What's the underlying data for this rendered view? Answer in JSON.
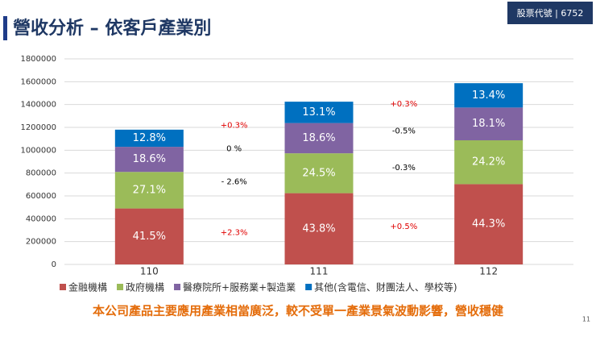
{
  "header": {
    "title": "營收分析 – 依客戶產業別",
    "stock_code": "股票代號 | 6752"
  },
  "chart_data": {
    "type": "stacked_bar",
    "categories": [
      "110",
      "111",
      "112"
    ],
    "series": [
      {
        "name": "金融機構",
        "color": "#c0504d",
        "values": [
          490000,
          624000,
          703000
        ],
        "share_labels": [
          "41.5%",
          "43.8%",
          "44.3%"
        ]
      },
      {
        "name": "政府機構",
        "color": "#9bbb59",
        "values": [
          320000,
          349000,
          384000
        ],
        "share_labels": [
          "27.1%",
          "24.5%",
          "24.2%"
        ]
      },
      {
        "name": "醫療院所+服務業+製造業",
        "color": "#8064a2",
        "values": [
          220000,
          265000,
          287000
        ],
        "share_labels": [
          "18.6%",
          "18.6%",
          "18.1%"
        ]
      },
      {
        "name": "其他(含電信、財團法人、學校等)",
        "color": "#0070c0",
        "values": [
          150000,
          187000,
          213000
        ],
        "share_labels": [
          "12.8%",
          "13.1%",
          "13.4%"
        ]
      }
    ],
    "changes": [
      [
        "+2.3%",
        "- 2.6%",
        "0 %",
        "+0.3%"
      ],
      [
        "+0.5%",
        "-0.3%",
        "-0.5%",
        "+0.3%"
      ]
    ],
    "ylim": [
      0,
      1800000
    ],
    "yticks": [
      0,
      200000,
      400000,
      600000,
      800000,
      1000000,
      1200000,
      1400000,
      1600000,
      1800000
    ],
    "grid": true,
    "legend": "bottom"
  },
  "footer": {
    "note": "本公司產品主要應用產業相當廣泛，較不受單一產業景氣波動影響，營收穩健",
    "page": "11"
  }
}
